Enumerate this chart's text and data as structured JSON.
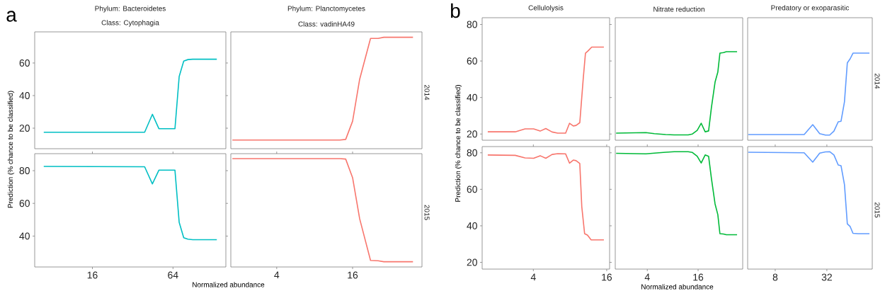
{
  "chart_data": [
    {
      "type": "line",
      "title": "Phylum: Bacteroidetes",
      "subtitle": "Class: Cytophagia",
      "ylabel": "Prediction (% chance to be classified)",
      "annotations": [
        "a"
      ],
      "log": "x",
      "xlim": [
        5.93,
        158.9
      ],
      "ylim": [
        7.4,
        79.1
      ],
      "yticks": [
        20,
        40,
        60
      ],
      "tick_labels": "y",
      "series": [
        {
          "color": "#00bfc4",
          "x": [
            6.93,
            39.3,
            44.9,
            50.2,
            66.2,
            71.2,
            77.0,
            82.8,
            89.9,
            136
          ],
          "values": [
            17.5,
            17.5,
            28.5,
            19.7,
            19.7,
            51.7,
            61.2,
            62.1,
            62.3,
            62.3
          ]
        }
      ]
    },
    {
      "type": "line",
      "title": "Phylum: Planctomycetes",
      "subtitle": "Class: vadinHA49",
      "annotations": [
        "2014"
      ],
      "log": "x",
      "xlim": [
        1.73,
        56.8
      ],
      "ylim": [
        7.4,
        79.1
      ],
      "tick_labels": false,
      "series": [
        {
          "color": "#f8766d",
          "x": [
            1.78,
            12.7,
            14.1,
            16,
            18.2,
            22.2,
            25.5,
            28.3,
            48.2
          ],
          "values": [
            12.7,
            12.7,
            13.1,
            24.3,
            50.0,
            75.1,
            75.1,
            75.8,
            75.8
          ]
        }
      ]
    },
    {
      "type": "line",
      "xlabel": "Normalized abundance",
      "log": "x",
      "xlim": [
        5.93,
        158.9
      ],
      "xticks": [
        16,
        64
      ],
      "ylim": [
        21.1,
        90.4
      ],
      "yticks": [
        40,
        60,
        80
      ],
      "series": [
        {
          "color": "#00bfc4",
          "x": [
            6.93,
            39.3,
            44.9,
            50.2,
            66.2,
            71.2,
            77.0,
            82.8,
            89.9,
            136
          ],
          "values": [
            82.6,
            82.4,
            71.9,
            80.3,
            80.3,
            48.4,
            39.0,
            38.1,
            37.8,
            37.8
          ]
        }
      ]
    },
    {
      "type": "line",
      "annotations": [
        "2015"
      ],
      "log": "x",
      "xlim": [
        1.73,
        56.8
      ],
      "xticks": [
        4,
        16
      ],
      "ylim": [
        21.1,
        90.4
      ],
      "tick_labels": "x",
      "series": [
        {
          "color": "#f8766d",
          "x": [
            1.78,
            12.7,
            14.1,
            16,
            18.2,
            22.2,
            25.5,
            28.3,
            48.2
          ],
          "values": [
            87.4,
            87.4,
            87.1,
            75.7,
            50.6,
            25.1,
            24.9,
            24.3,
            24.3
          ]
        }
      ]
    },
    {
      "type": "line",
      "title": "Cellulolysis",
      "ylabel": "Prediction (% chance to be classified)",
      "annotations": [
        "b"
      ],
      "log": "x",
      "xlim": [
        1.52,
        16.9
      ],
      "ylim": [
        16.6,
        83.7
      ],
      "yticks": [
        20,
        40,
        60,
        80
      ],
      "tick_labels": "y",
      "series": [
        {
          "color": "#f8766d",
          "x": [
            1.69,
            2.84,
            3.42,
            4.02,
            4.55,
            5.06,
            5.7,
            6.34,
            7.36,
            7.93,
            8.51,
            8.97,
            9.62,
            10.26,
            10.71,
            11.24,
            12.05,
            15.17
          ],
          "values": [
            21.2,
            21.2,
            22.8,
            22.8,
            21.6,
            23.0,
            21.1,
            20.5,
            20.5,
            25.9,
            24.4,
            24.7,
            26.2,
            50.0,
            64.3,
            65.5,
            67.6,
            67.6
          ]
        }
      ]
    },
    {
      "type": "line",
      "title": "Nitrate reduction",
      "log": "x",
      "xlim": [
        1.67,
        54.0
      ],
      "ylim": [
        16.6,
        83.7
      ],
      "tick_labels": false,
      "series": [
        {
          "color": "#00ba38",
          "x": [
            1.71,
            3.85,
            4.85,
            6.6,
            8.32,
            12.2,
            13.7,
            15.6,
            17.4,
            19.4,
            21.3,
            23.0,
            25.4,
            27.4,
            29.0,
            32,
            34.6,
            46.3
          ],
          "values": [
            20.5,
            20.8,
            20.2,
            19.7,
            19.5,
            19.5,
            20.0,
            22.0,
            25.9,
            21.2,
            21.7,
            34.5,
            48.4,
            53.9,
            64.3,
            64.6,
            65.1,
            65.1
          ]
        }
      ]
    },
    {
      "type": "line",
      "title": "Predatory or exoparasitic",
      "annotations": [
        "2014"
      ],
      "log": "x",
      "xlim": [
        3.82,
        108.2
      ],
      "ylim": [
        16.6,
        83.7
      ],
      "tick_labels": false,
      "series": [
        {
          "color": "#619cff",
          "x": [
            3.88,
            17.4,
            21.9,
            26.4,
            30.8,
            34.5,
            38.7,
            43.4,
            46.8,
            51.3,
            55.4,
            59.8,
            64.5,
            74.0,
            100.3
          ],
          "values": [
            19.7,
            19.7,
            25.1,
            20.2,
            19.4,
            19.4,
            21.6,
            26.7,
            27.0,
            37.6,
            59.0,
            61.2,
            64.3,
            64.3,
            64.3
          ]
        }
      ]
    },
    {
      "type": "line",
      "log": "x",
      "xlim": [
        1.52,
        16.9
      ],
      "xticks": [
        4,
        16
      ],
      "ylim": [
        16.3,
        83.4
      ],
      "yticks": [
        20,
        40,
        60,
        80
      ],
      "series": [
        {
          "color": "#f8766d",
          "x": [
            1.69,
            2.84,
            3.42,
            4.02,
            4.55,
            5.06,
            5.7,
            6.34,
            7.36,
            7.93,
            8.51,
            8.97,
            9.62,
            9.99,
            10.54,
            11.12,
            11.92,
            15.17
          ],
          "values": [
            78.8,
            78.6,
            77.2,
            77.0,
            78.4,
            77.0,
            79.1,
            79.5,
            79.4,
            74.3,
            76.0,
            75.7,
            74.1,
            50.5,
            35.7,
            34.9,
            32.3,
            32.3
          ]
        }
      ]
    },
    {
      "type": "line",
      "xlabel": "Normalized abundance",
      "log": "x",
      "xlim": [
        1.67,
        54.0
      ],
      "xticks": [
        4,
        16
      ],
      "ylim": [
        16.3,
        83.4
      ],
      "tick_labels": "x",
      "series": [
        {
          "color": "#00ba38",
          "x": [
            1.71,
            3.85,
            4.85,
            6.6,
            8.32,
            12.2,
            13.7,
            15.6,
            17.4,
            19.4,
            21.3,
            23.0,
            25.4,
            27.4,
            29.0,
            32,
            34.6,
            46.3
          ],
          "values": [
            79.7,
            79.4,
            79.8,
            80.3,
            80.6,
            80.6,
            80.2,
            78.1,
            74.4,
            78.8,
            78.1,
            66.0,
            52.0,
            46.1,
            35.7,
            35.5,
            35.1,
            35.1
          ]
        }
      ]
    },
    {
      "type": "line",
      "annotations": [
        "2015"
      ],
      "log": "x",
      "xlim": [
        3.82,
        108.2
      ],
      "xticks": [
        8,
        32
      ],
      "ylim": [
        16.3,
        83.4
      ],
      "tick_labels": "x",
      "series": [
        {
          "color": "#619cff",
          "x": [
            3.88,
            17.4,
            21.9,
            26.4,
            30.8,
            34.5,
            38.7,
            43.4,
            46.8,
            51.3,
            55.4,
            59.8,
            64.5,
            74.0,
            100.3
          ],
          "values": [
            80.3,
            80.0,
            74.9,
            79.8,
            80.5,
            80.6,
            78.8,
            73.3,
            72.9,
            62.6,
            41.1,
            39.6,
            35.9,
            35.7,
            35.7
          ]
        }
      ]
    }
  ]
}
